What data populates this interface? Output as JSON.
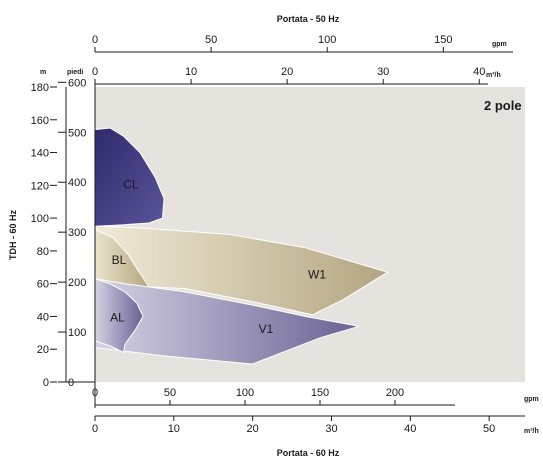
{
  "chart_data": {
    "type": "area",
    "annotation": "2 pole",
    "axes": {
      "top_title": "Portata - 50 Hz",
      "top_gpm": {
        "unit": "gpm",
        "ticks": [
          0,
          50,
          100,
          150
        ],
        "range": [
          0,
          180
        ]
      },
      "top_m3h": {
        "unit": "m³/h",
        "ticks": [
          0,
          10,
          20,
          30,
          40
        ],
        "range": [
          0,
          40.91
        ]
      },
      "bottom_gpm": {
        "unit": "gpm",
        "ticks": [
          0,
          50,
          100,
          150,
          200
        ],
        "range": [
          0,
          240
        ]
      },
      "bottom_m3h": {
        "unit": "m³/h",
        "ticks": [
          0,
          10,
          20,
          30,
          40,
          50
        ],
        "range": [
          0,
          54.55
        ]
      },
      "bottom_title": "Portata - 60 Hz",
      "left_title": "TDH - 60 Hz",
      "left_m": {
        "unit": "m",
        "ticks": [
          0,
          20,
          40,
          60,
          80,
          100,
          120,
          140,
          160,
          180
        ],
        "range": [
          0,
          180
        ]
      },
      "left_ft": {
        "unit": "piedi",
        "ticks": [
          0,
          100,
          200,
          300,
          400,
          500,
          600
        ],
        "range": [
          0,
          590.6
        ]
      }
    },
    "regions": [
      {
        "name": "W1",
        "color": "#b3a580",
        "color_light": "#f0ead8",
        "label_at": [
          148,
          65
        ],
        "points": [
          [
            0,
            95
          ],
          [
            30,
            94
          ],
          [
            90,
            90
          ],
          [
            140,
            82
          ],
          [
            195,
            67
          ],
          [
            165,
            50
          ],
          [
            145,
            41
          ],
          [
            105,
            49
          ],
          [
            60,
            57
          ],
          [
            35,
            58
          ],
          [
            12,
            57
          ],
          [
            0,
            55
          ]
        ]
      },
      {
        "name": "BL",
        "color": "#b3a77f",
        "color_light": "#ebe4cc",
        "label_at": [
          16,
          74
        ],
        "points": [
          [
            0,
            93
          ],
          [
            12,
            88
          ],
          [
            22,
            78
          ],
          [
            28,
            69
          ],
          [
            36,
            58
          ],
          [
            12,
            57
          ],
          [
            0,
            55
          ]
        ]
      },
      {
        "name": "V1",
        "color": "#6a6294",
        "color_light": "#d5d2e4",
        "label_at": [
          114,
          32
        ],
        "points": [
          [
            0,
            63
          ],
          [
            20,
            60
          ],
          [
            60,
            55
          ],
          [
            110,
            46
          ],
          [
            140,
            40
          ],
          [
            176,
            34
          ],
          [
            150,
            27
          ],
          [
            105,
            11
          ],
          [
            45,
            16
          ],
          [
            10,
            20
          ],
          [
            0,
            21
          ]
        ]
      },
      {
        "name": "AL",
        "color": "#6a6294",
        "color_light": "#d5d2e4",
        "label_at": [
          15,
          39
        ],
        "points": [
          [
            0,
            63
          ],
          [
            10,
            60
          ],
          [
            20,
            55
          ],
          [
            28,
            48
          ],
          [
            32,
            40
          ],
          [
            27,
            32
          ],
          [
            20,
            23
          ],
          [
            19,
            18
          ],
          [
            10,
            22
          ],
          [
            0,
            25
          ]
        ]
      },
      {
        "name": "CL",
        "color": "#2f2a6e",
        "color_light": "#5a5499",
        "label_at": [
          24,
          120
        ],
        "points": [
          [
            0,
            154
          ],
          [
            10,
            155
          ],
          [
            19,
            150
          ],
          [
            30,
            140
          ],
          [
            40,
            125
          ],
          [
            46,
            112
          ],
          [
            45,
            100
          ],
          [
            36,
            97
          ],
          [
            20,
            96
          ],
          [
            0,
            95
          ]
        ]
      }
    ]
  }
}
